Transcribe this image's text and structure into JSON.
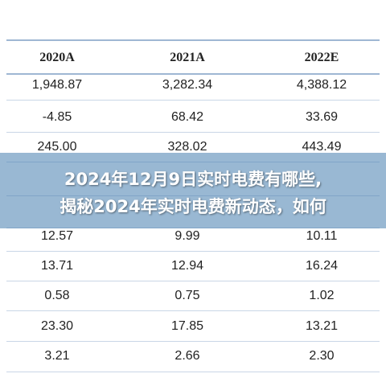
{
  "table": {
    "headers": [
      "2020A",
      "2021A",
      "2022E"
    ],
    "rows": [
      [
        "1,948.87",
        "3,282.34",
        "4,388.12"
      ],
      [
        "-4.85",
        "68.42",
        "33.69"
      ],
      [
        "245.00",
        "328.02",
        "443.49"
      ],
      [
        "",
        "",
        ""
      ],
      [
        "12.57",
        "9.99",
        "10.11"
      ],
      [
        "13.71",
        "12.94",
        "16.24"
      ],
      [
        "0.58",
        "0.75",
        "1.02"
      ],
      [
        "23.30",
        "17.85",
        "13.21"
      ],
      [
        "3.21",
        "2.66",
        "2.30"
      ]
    ]
  },
  "banner": {
    "line1": "2024年12月9日实时电费有哪些,",
    "line2": "揭秘2024年实时电费新动态，如何"
  }
}
